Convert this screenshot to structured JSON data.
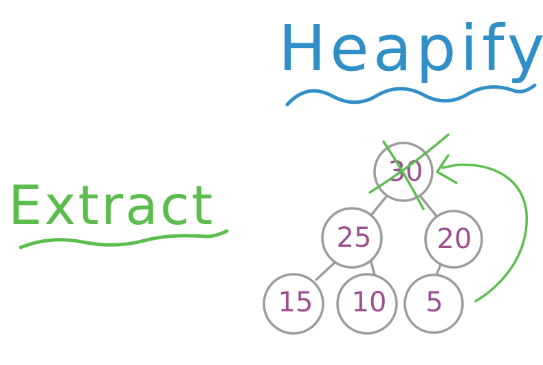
{
  "colors": {
    "heapify": "#2f8fc6",
    "extract": "#5cbd4e",
    "node_text": "#9c4f8e",
    "node_stroke": "#9b9b9b"
  },
  "titles": {
    "heapify": "Heapify",
    "extract": "Extract"
  },
  "tree": {
    "nodes": [
      {
        "id": "n30",
        "label": "30"
      },
      {
        "id": "n25",
        "label": "25"
      },
      {
        "id": "n20",
        "label": "20"
      },
      {
        "id": "n15",
        "label": "15"
      },
      {
        "id": "n10",
        "label": "10"
      },
      {
        "id": "n5",
        "label": "5"
      }
    ]
  }
}
